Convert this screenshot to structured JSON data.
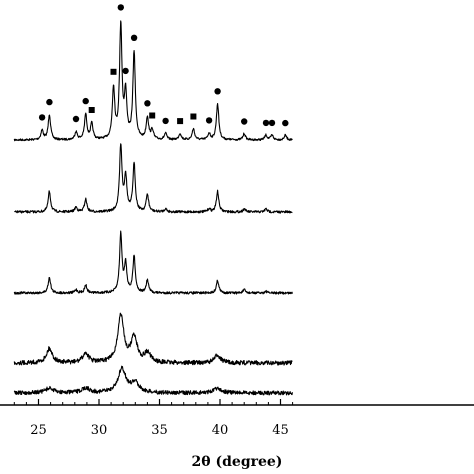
{
  "chart_data": {
    "type": "line",
    "title": "",
    "xlabel": "2θ (degree)",
    "ylabel": "",
    "xlim": [
      23,
      46
    ],
    "x_ticks": [
      25,
      30,
      35,
      40,
      45
    ],
    "x_tick_labels": [
      "25",
      "30",
      "35",
      "40",
      "45"
    ],
    "legend": "none",
    "grid": false,
    "series": [
      {
        "peaks": [
          [
            25.3,
            0.06
          ],
          [
            25.9,
            0.16
          ],
          [
            28.1,
            0.05
          ],
          [
            28.9,
            0.16
          ],
          [
            29.4,
            0.1
          ],
          [
            31.2,
            0.32
          ],
          [
            31.8,
            0.72
          ],
          [
            32.2,
            0.28
          ],
          [
            32.9,
            0.55
          ],
          [
            34.0,
            0.14
          ],
          [
            34.4,
            0.06
          ],
          [
            35.5,
            0.04
          ],
          [
            36.7,
            0.04
          ],
          [
            37.8,
            0.07
          ],
          [
            39.1,
            0.04
          ],
          [
            39.8,
            0.23
          ],
          [
            42.0,
            0.04
          ],
          [
            43.8,
            0.03
          ],
          [
            44.3,
            0.03
          ],
          [
            45.4,
            0.03
          ]
        ],
        "markers": [
          {
            "x": 25.3,
            "shape": "circle"
          },
          {
            "x": 25.9,
            "shape": "circle"
          },
          {
            "x": 28.1,
            "shape": "circle"
          },
          {
            "x": 28.9,
            "shape": "circle"
          },
          {
            "x": 29.4,
            "shape": "square"
          },
          {
            "x": 31.2,
            "shape": "square"
          },
          {
            "x": 31.8,
            "shape": "circle"
          },
          {
            "x": 32.2,
            "shape": "circle"
          },
          {
            "x": 32.9,
            "shape": "circle"
          },
          {
            "x": 34.0,
            "shape": "circle"
          },
          {
            "x": 34.4,
            "shape": "square"
          },
          {
            "x": 35.5,
            "shape": "circle"
          },
          {
            "x": 36.7,
            "shape": "square"
          },
          {
            "x": 37.8,
            "shape": "square"
          },
          {
            "x": 39.1,
            "shape": "circle"
          },
          {
            "x": 39.8,
            "shape": "circle"
          },
          {
            "x": 42.0,
            "shape": "circle"
          },
          {
            "x": 43.8,
            "shape": "circle"
          },
          {
            "x": 44.3,
            "shape": "circle"
          },
          {
            "x": 45.4,
            "shape": "circle"
          }
        ]
      },
      {
        "peaks": [
          [
            25.9,
            0.13
          ],
          [
            28.1,
            0.03
          ],
          [
            28.9,
            0.08
          ],
          [
            31.8,
            0.42
          ],
          [
            32.2,
            0.22
          ],
          [
            32.9,
            0.3
          ],
          [
            34.0,
            0.11
          ],
          [
            35.5,
            0.02
          ],
          [
            39.1,
            0.02
          ],
          [
            39.8,
            0.13
          ],
          [
            42.0,
            0.02
          ],
          [
            43.8,
            0.02
          ]
        ]
      },
      {
        "peaks": [
          [
            25.9,
            0.1
          ],
          [
            28.1,
            0.02
          ],
          [
            28.9,
            0.05
          ],
          [
            31.8,
            0.37
          ],
          [
            32.2,
            0.18
          ],
          [
            32.9,
            0.23
          ],
          [
            34.0,
            0.08
          ],
          [
            39.8,
            0.08
          ],
          [
            42.0,
            0.02
          ],
          [
            43.8,
            0.01
          ]
        ]
      },
      {
        "peaks": [
          [
            25.9,
            0.09
          ],
          [
            28.9,
            0.06
          ],
          [
            31.8,
            0.3
          ],
          [
            32.9,
            0.16
          ],
          [
            34.0,
            0.06
          ],
          [
            39.8,
            0.05
          ]
        ]
      },
      {
        "peaks": [
          [
            25.9,
            0.03
          ],
          [
            28.9,
            0.03
          ],
          [
            31.9,
            0.15
          ],
          [
            33.0,
            0.06
          ],
          [
            39.8,
            0.03
          ]
        ]
      }
    ]
  }
}
